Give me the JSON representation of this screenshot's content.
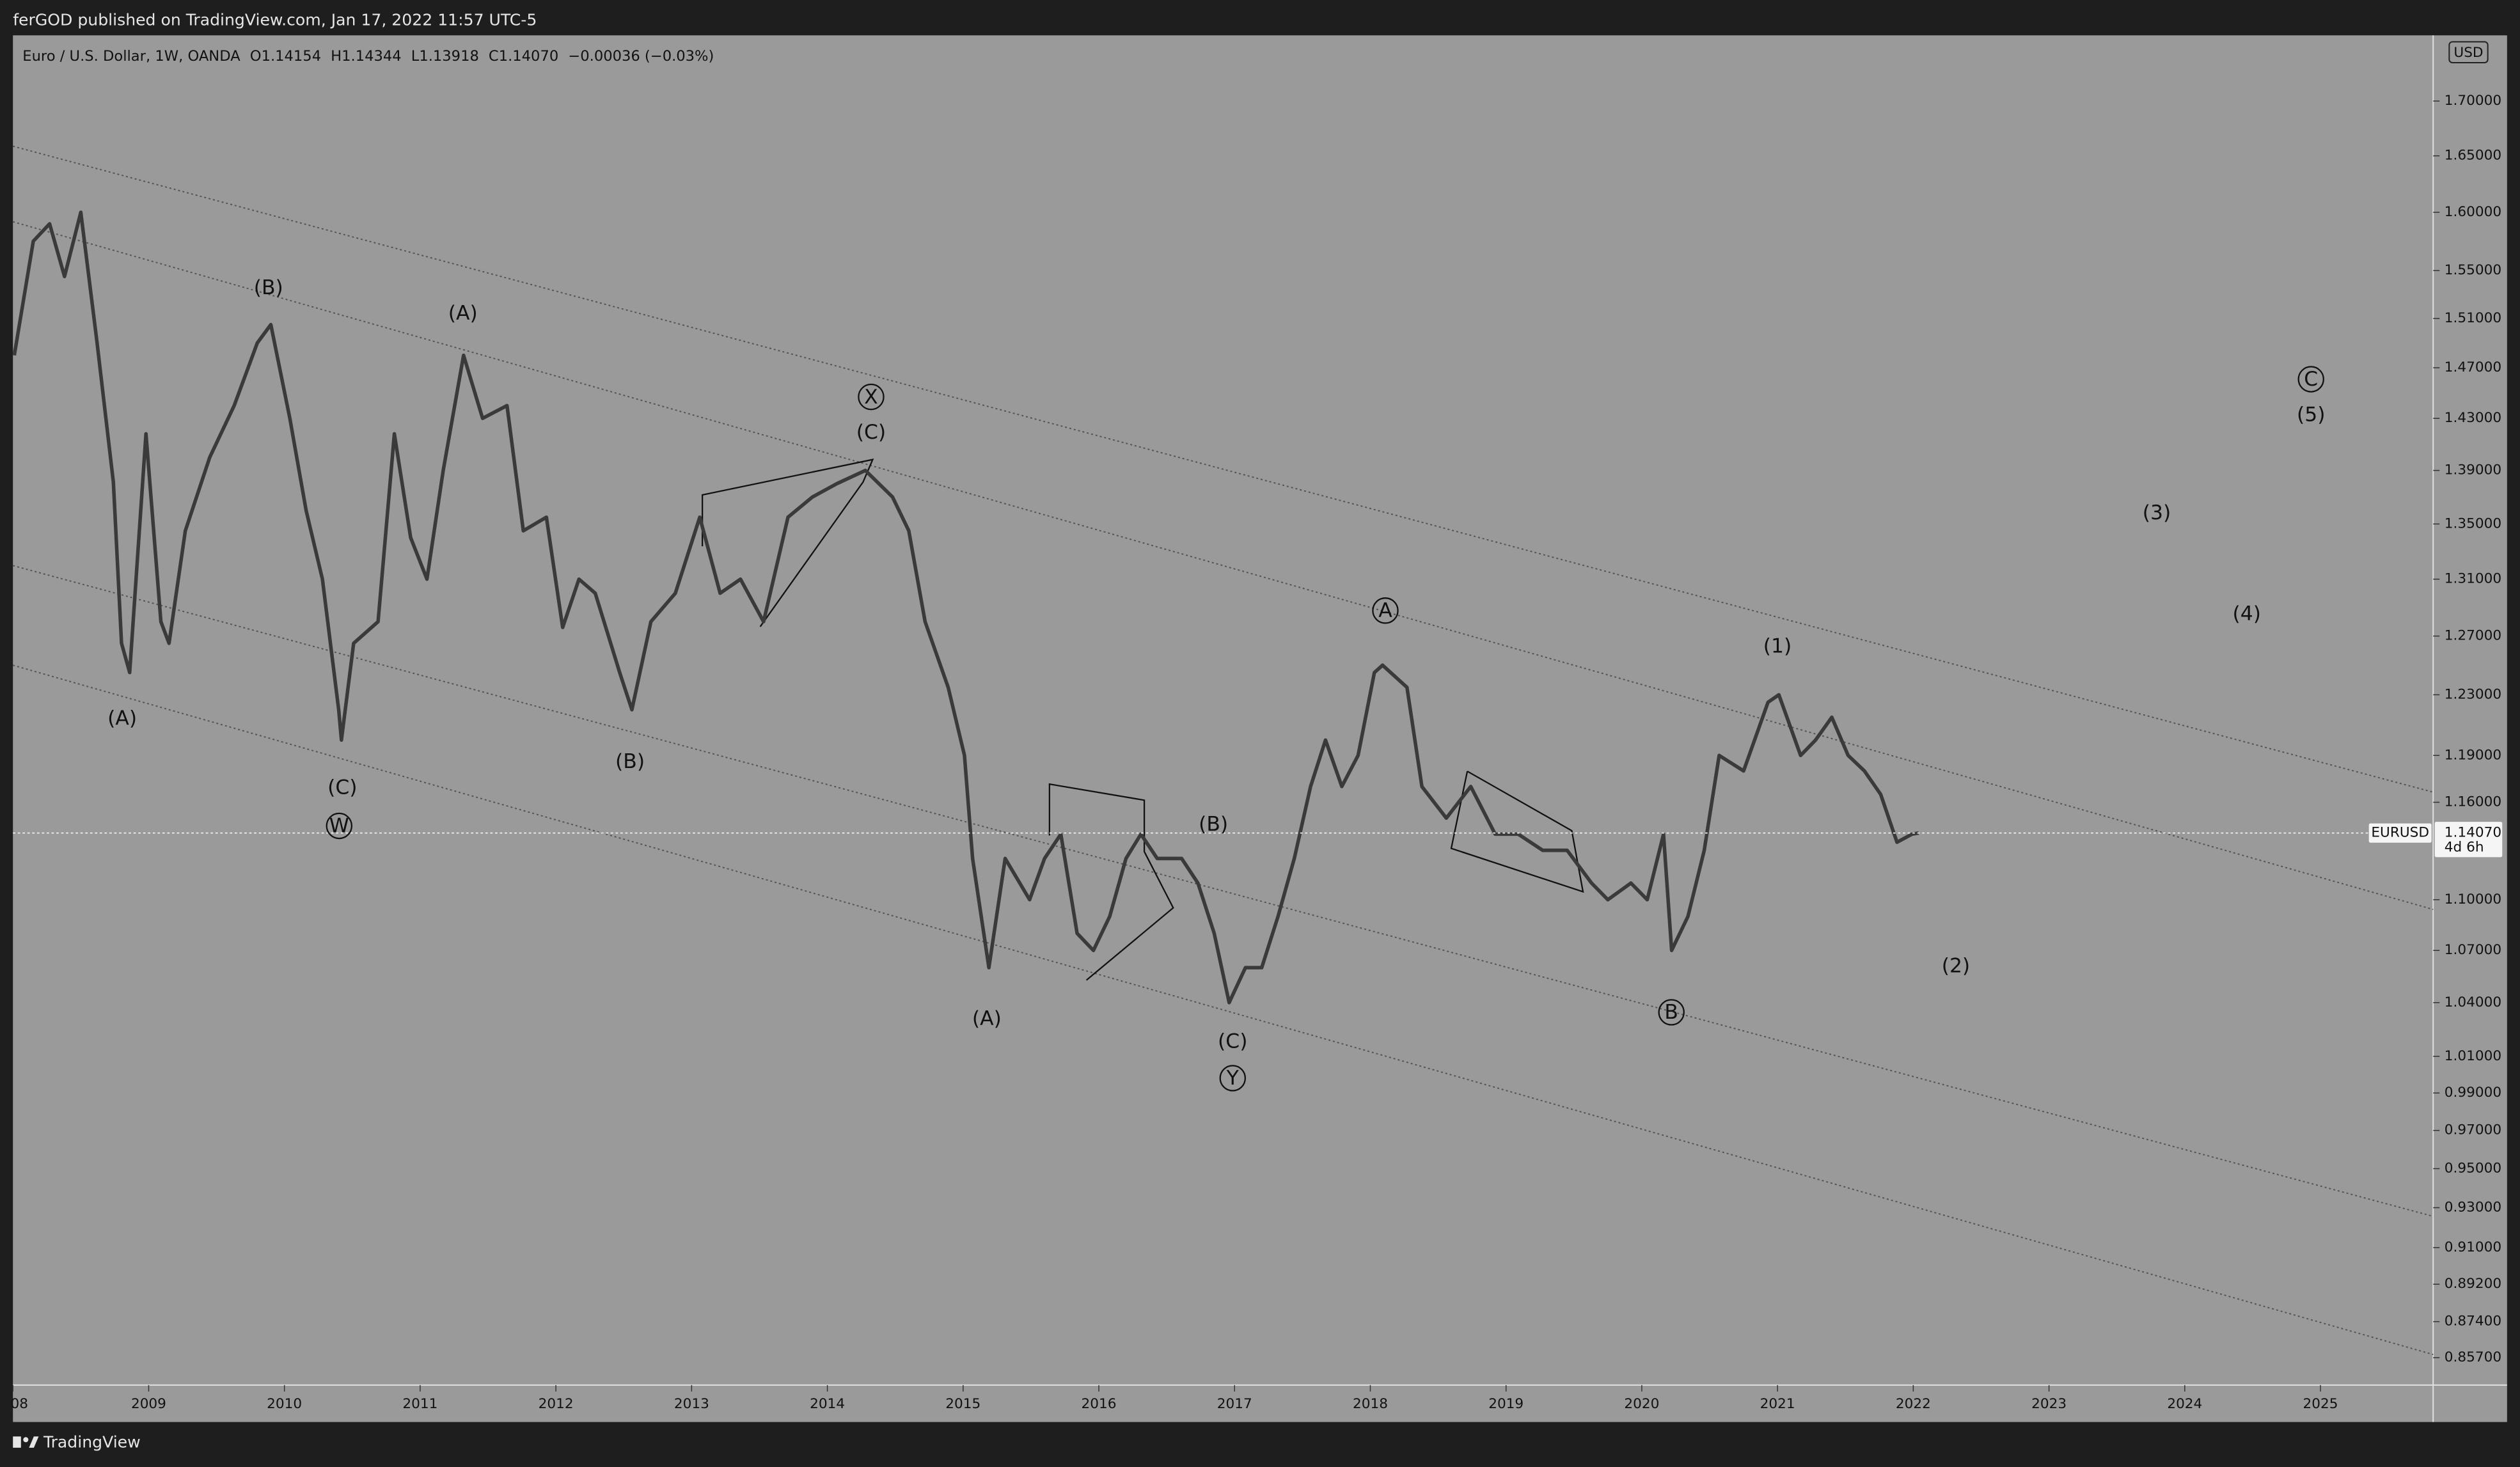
{
  "header": {
    "text": "ferGOD published on TradingView.com, Jan 17, 2022 11:57 UTC-5"
  },
  "legend": {
    "symbol": "Euro / U.S. Dollar, 1W, OANDA",
    "ohlc": [
      {
        "label": "O",
        "value": "1.14154"
      },
      {
        "label": "H",
        "value": "1.14344"
      },
      {
        "label": "L",
        "value": "1.13918"
      },
      {
        "label": "C",
        "value": "1.14070"
      }
    ],
    "change": "−0.00036 (−0.03%)"
  },
  "currency": "USD",
  "footer": {
    "brand": "TradingView"
  },
  "last_price": {
    "symbol": "EURUSD",
    "value": 1.1407,
    "label": "1.14070",
    "countdown": "4d 6h"
  },
  "chart_data": {
    "type": "line",
    "log_scale": true,
    "xlim": [
      2008.0,
      2025.83
    ],
    "ylim": [
      0.8443,
      1.762
    ],
    "xticks": [
      {
        "value": 2008,
        "label": "08"
      },
      2009,
      2010,
      2011,
      2012,
      2013,
      2014,
      2015,
      2016,
      2017,
      2018,
      2019,
      2020,
      2021,
      2022,
      2023,
      2024,
      2025
    ],
    "yticks": [
      {
        "value": 1.7,
        "label": "1.70000"
      },
      {
        "value": 1.65,
        "label": "1.65000"
      },
      {
        "value": 1.6,
        "label": "1.60000"
      },
      {
        "value": 1.55,
        "label": "1.55000"
      },
      {
        "value": 1.51,
        "label": "1.51000"
      },
      {
        "value": 1.47,
        "label": "1.47000"
      },
      {
        "value": 1.43,
        "label": "1.43000"
      },
      {
        "value": 1.39,
        "label": "1.39000"
      },
      {
        "value": 1.35,
        "label": "1.35000"
      },
      {
        "value": 1.31,
        "label": "1.31000"
      },
      {
        "value": 1.27,
        "label": "1.27000"
      },
      {
        "value": 1.23,
        "label": "1.23000"
      },
      {
        "value": 1.19,
        "label": "1.19000"
      },
      {
        "value": 1.16,
        "label": "1.16000"
      },
      {
        "value": 1.1,
        "label": "1.10000"
      },
      {
        "value": 1.07,
        "label": "1.07000"
      },
      {
        "value": 1.04,
        "label": "1.04000"
      },
      {
        "value": 1.01,
        "label": "1.01000"
      },
      {
        "value": 0.99,
        "label": "0.99000"
      },
      {
        "value": 0.97,
        "label": "0.97000"
      },
      {
        "value": 0.95,
        "label": "0.95000"
      },
      {
        "value": 0.93,
        "label": "0.93000"
      },
      {
        "value": 0.91,
        "label": "0.91000"
      },
      {
        "value": 0.892,
        "label": "0.89200"
      },
      {
        "value": 0.874,
        "label": "0.87400"
      },
      {
        "value": 0.857,
        "label": "0.85700"
      }
    ],
    "x": [
      2008.01,
      2008.15,
      2008.27,
      2008.38,
      2008.5,
      2008.62,
      2008.74,
      2008.8,
      2008.86,
      2008.98,
      2009.09,
      2009.15,
      2009.27,
      2009.45,
      2009.63,
      2009.8,
      2009.9,
      2010.04,
      2010.16,
      2010.28,
      2010.4,
      2010.42,
      2010.51,
      2010.69,
      2010.81,
      2010.93,
      2011.05,
      2011.17,
      2011.32,
      2011.46,
      2011.64,
      2011.76,
      2011.93,
      2012.05,
      2012.17,
      2012.29,
      2012.47,
      2012.56,
      2012.7,
      2012.88,
      2013.06,
      2013.21,
      2013.36,
      2013.53,
      2013.71,
      2013.89,
      2014.07,
      2014.28,
      2014.48,
      2014.6,
      2014.72,
      2014.89,
      2015.01,
      2015.07,
      2015.19,
      2015.31,
      2015.49,
      2015.6,
      2015.72,
      2015.84,
      2015.96,
      2016.08,
      2016.2,
      2016.31,
      2016.43,
      2016.61,
      2016.73,
      2016.85,
      2016.96,
      2017.08,
      2017.2,
      2017.32,
      2017.44,
      2017.56,
      2017.67,
      2017.79,
      2017.91,
      2018.03,
      2018.09,
      2018.27,
      2018.38,
      2018.56,
      2018.74,
      2018.92,
      2019.09,
      2019.27,
      2019.45,
      2019.63,
      2019.75,
      2019.92,
      2020.04,
      2020.16,
      2020.22,
      2020.34,
      2020.46,
      2020.57,
      2020.75,
      2020.93,
      2021.01,
      2021.17,
      2021.28,
      2021.4,
      2021.52,
      2021.64,
      2021.76,
      2021.88,
      2021.99,
      2022.04
    ],
    "series": [
      {
        "name": "EURUSD",
        "color": "#3a3a3a",
        "values": [
          1.48,
          1.575,
          1.59,
          1.545,
          1.6,
          1.49,
          1.381,
          1.265,
          1.245,
          1.418,
          1.28,
          1.265,
          1.345,
          1.4,
          1.44,
          1.49,
          1.505,
          1.43,
          1.36,
          1.31,
          1.22,
          1.2,
          1.265,
          1.28,
          1.418,
          1.34,
          1.31,
          1.39,
          1.48,
          1.43,
          1.44,
          1.345,
          1.355,
          1.276,
          1.31,
          1.3,
          1.245,
          1.22,
          1.28,
          1.3,
          1.355,
          1.3,
          1.31,
          1.28,
          1.355,
          1.37,
          1.38,
          1.39,
          1.37,
          1.345,
          1.28,
          1.235,
          1.19,
          1.125,
          1.06,
          1.125,
          1.1,
          1.125,
          1.14,
          1.08,
          1.07,
          1.09,
          1.125,
          1.14,
          1.125,
          1.125,
          1.11,
          1.08,
          1.04,
          1.06,
          1.06,
          1.09,
          1.125,
          1.17,
          1.2,
          1.17,
          1.19,
          1.245,
          1.25,
          1.235,
          1.17,
          1.15,
          1.17,
          1.14,
          1.14,
          1.13,
          1.13,
          1.11,
          1.1,
          1.11,
          1.1,
          1.14,
          1.07,
          1.09,
          1.13,
          1.19,
          1.18,
          1.225,
          1.23,
          1.19,
          1.2,
          1.215,
          1.19,
          1.18,
          1.165,
          1.135,
          1.14,
          1.1407
        ]
      }
    ],
    "annotations": [
      {
        "text": "(A)",
        "circled": false
      },
      {
        "text": "(B)",
        "circled": false
      },
      {
        "text": "(C)",
        "circled": false
      },
      {
        "text": "W",
        "circled": true
      },
      {
        "text": "(A)",
        "circled": false
      },
      {
        "text": "(B)",
        "circled": false
      },
      {
        "text": "X",
        "circled": true
      },
      {
        "text": "(C)",
        "circled": false
      },
      {
        "text": "(A)",
        "circled": false
      },
      {
        "text": "(B)",
        "circled": false
      },
      {
        "text": "(C)",
        "circled": false
      },
      {
        "text": "Y",
        "circled": true
      },
      {
        "text": "A",
        "circled": true
      },
      {
        "text": "B",
        "circled": true
      },
      {
        "text": "(1)",
        "circled": false
      },
      {
        "text": "(2)",
        "circled": false
      },
      {
        "text": "(3)",
        "circled": false
      },
      {
        "text": "(4)",
        "circled": false
      },
      {
        "text": "C",
        "circled": true
      },
      {
        "text": "(5)",
        "circled": false
      }
    ]
  }
}
